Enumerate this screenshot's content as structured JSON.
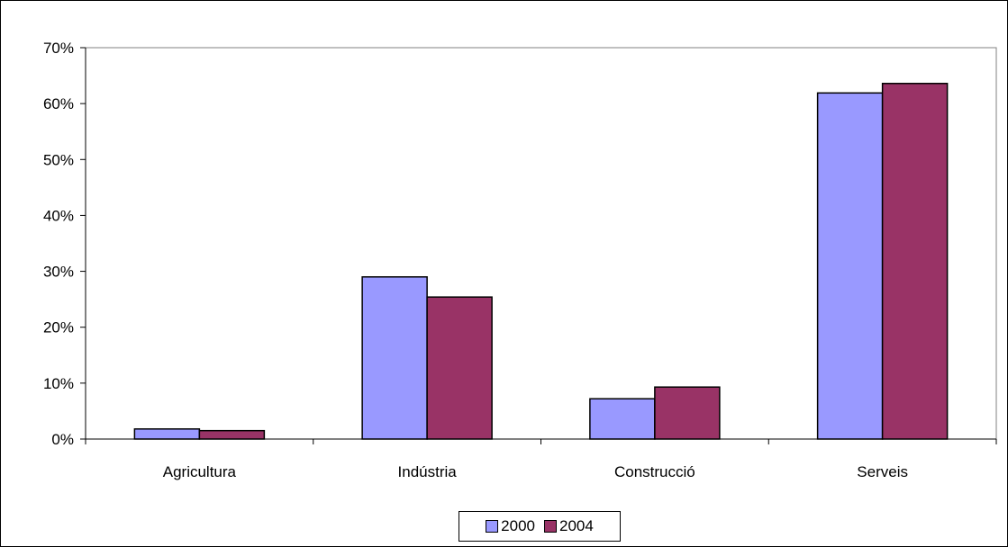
{
  "chart_data": {
    "type": "bar",
    "categories": [
      "Agricultura",
      "Indústria",
      "Construcció",
      "Serveis"
    ],
    "series": [
      {
        "name": "2000",
        "color": "#9999ff",
        "values": [
          1.8,
          29.0,
          7.2,
          61.9
        ]
      },
      {
        "name": "2004",
        "color": "#993366",
        "values": [
          1.5,
          25.4,
          9.3,
          63.6
        ]
      }
    ],
    "ylim": [
      0,
      70
    ],
    "yticks": [
      "0%",
      "10%",
      "20%",
      "30%",
      "40%",
      "50%",
      "60%",
      "70%"
    ],
    "ytick_values": [
      0,
      10,
      20,
      30,
      40,
      50,
      60,
      70
    ],
    "title": "",
    "xlabel": "",
    "ylabel": "",
    "legend": "bottom",
    "grid": false
  }
}
